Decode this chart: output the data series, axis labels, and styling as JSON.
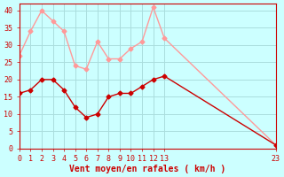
{
  "x_mean": [
    0,
    1,
    2,
    3,
    4,
    5,
    6,
    7,
    8,
    9,
    10,
    11,
    12,
    13,
    23
  ],
  "y_mean": [
    16,
    17,
    20,
    20,
    17,
    12,
    9,
    10,
    15,
    16,
    16,
    18,
    20,
    21,
    1
  ],
  "x_gust": [
    0,
    1,
    2,
    3,
    4,
    5,
    6,
    7,
    8,
    9,
    10,
    11,
    12,
    13,
    23
  ],
  "y_gust": [
    27,
    34,
    40,
    37,
    34,
    24,
    23,
    31,
    26,
    26,
    29,
    31,
    41,
    32,
    1
  ],
  "mean_color": "#cc0000",
  "gust_color": "#ff9999",
  "bg_color": "#ccffff",
  "grid_color": "#aadddd",
  "axis_color": "#cc0000",
  "xlabel": "Vent moyen/en rafales ( km/h )",
  "ylim": [
    0,
    42
  ],
  "xlim": [
    0,
    23
  ],
  "yticks": [
    0,
    5,
    10,
    15,
    20,
    25,
    30,
    35,
    40
  ],
  "xticks": [
    0,
    1,
    2,
    3,
    4,
    5,
    6,
    7,
    8,
    9,
    10,
    11,
    12,
    13,
    23
  ],
  "xtick_labels": [
    "0",
    "1",
    "2",
    "3",
    "4",
    "5",
    "6",
    "7",
    "8",
    "9",
    "10",
    "11",
    "12",
    "13",
    "23"
  ],
  "marker": "D",
  "markersize": 2.5
}
